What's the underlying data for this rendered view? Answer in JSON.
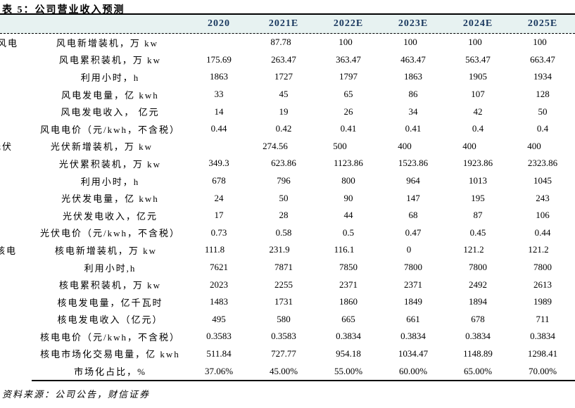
{
  "title": "表 5：公司营业收入预测",
  "source_note": "资料来源：公司公告，财信证券",
  "colors": {
    "header_bg": "#e7f2f1",
    "header_text": "#17365d",
    "rule": "#000000"
  },
  "table": {
    "columns": [
      "2020",
      "2021E",
      "2022E",
      "2023E",
      "2024E",
      "2025E"
    ],
    "groups": [
      "风电",
      "光伏",
      "核电"
    ],
    "rows": [
      {
        "group": "风电",
        "label": "风电新增装机，万 kw",
        "values": [
          "",
          "87.78",
          "100",
          "100",
          "100",
          "100"
        ]
      },
      {
        "group": "",
        "label": "风电累积装机，万 kw",
        "values": [
          "175.69",
          "263.47",
          "363.47",
          "463.47",
          "563.47",
          "663.47"
        ]
      },
      {
        "group": "",
        "label": "利用小时，h",
        "values": [
          "1863",
          "1727",
          "1797",
          "1863",
          "1905",
          "1934"
        ]
      },
      {
        "group": "",
        "label": "风电发电量，亿 kwh",
        "values": [
          "33",
          "45",
          "65",
          "86",
          "107",
          "128"
        ]
      },
      {
        "group": "",
        "label": "风电发电收入， 亿元",
        "values": [
          "14",
          "19",
          "26",
          "34",
          "42",
          "50"
        ]
      },
      {
        "group": "",
        "label": "风电电价（元/kwh，不含税）",
        "values": [
          "0.44",
          "0.42",
          "0.41",
          "0.41",
          "0.4",
          "0.4"
        ]
      },
      {
        "group": "光伏",
        "label": "光伏新增装机，万 kw",
        "values": [
          "",
          "274.56",
          "500",
          "400",
          "400",
          "400"
        ]
      },
      {
        "group": "",
        "label": "光伏累积装机，万 kw",
        "values": [
          "349.3",
          "623.86",
          "1123.86",
          "1523.86",
          "1923.86",
          "2323.86"
        ]
      },
      {
        "group": "",
        "label": "利用小时，h",
        "values": [
          "678",
          "796",
          "800",
          "964",
          "1013",
          "1045"
        ]
      },
      {
        "group": "",
        "label": "光伏发电量，亿 kwh",
        "values": [
          "24",
          "50",
          "90",
          "147",
          "195",
          "243"
        ]
      },
      {
        "group": "",
        "label": "光伏发电收入，亿元",
        "values": [
          "17",
          "28",
          "44",
          "68",
          "87",
          "106"
        ]
      },
      {
        "group": "",
        "label": "光伏电价（元/kwh，不含税）",
        "values": [
          "0.73",
          "0.58",
          "0.5",
          "0.47",
          "0.45",
          "0.44"
        ]
      },
      {
        "group": "核电",
        "label": "核电新增装机，万 kw",
        "values": [
          "111.8",
          "231.9",
          "116.1",
          "0",
          "121.2",
          "121.2"
        ]
      },
      {
        "group": "",
        "label": "利用小时,h",
        "values": [
          "7621",
          "7871",
          "7850",
          "7800",
          "7800",
          "7800"
        ]
      },
      {
        "group": "",
        "label": "核电累积装机，万 kw",
        "values": [
          "2023",
          "2255",
          "2371",
          "2371",
          "2492",
          "2613"
        ]
      },
      {
        "group": "",
        "label": "核电发电量，亿千瓦时",
        "values": [
          "1483",
          "1731",
          "1860",
          "1849",
          "1894",
          "1989"
        ]
      },
      {
        "group": "",
        "label": "核电发电收入（亿元）",
        "values": [
          "495",
          "580",
          "665",
          "661",
          "678",
          "711"
        ]
      },
      {
        "group": "",
        "label": "核电电价（元/kwh，不含税）",
        "values": [
          "0.3583",
          "0.3583",
          "0.3834",
          "0.3834",
          "0.3834",
          "0.3834"
        ]
      },
      {
        "group": "",
        "label": "核电市场化交易电量，亿 kwh",
        "values": [
          "511.84",
          "727.77",
          "954.18",
          "1034.47",
          "1148.89",
          "1298.41"
        ]
      },
      {
        "group": "",
        "label": "市场化占比，%",
        "values": [
          "37.06%",
          "45.00%",
          "55.00%",
          "60.00%",
          "65.00%",
          "70.00%"
        ]
      }
    ]
  }
}
